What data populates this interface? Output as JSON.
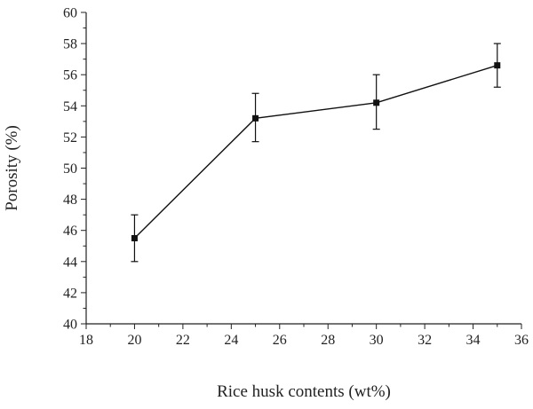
{
  "chart_data": {
    "type": "line",
    "xlabel": "Rice husk contents (wt%)",
    "ylabel": "Porosity (%)",
    "xlim": [
      18,
      36
    ],
    "ylim": [
      40,
      60
    ],
    "xticks": [
      18,
      20,
      22,
      24,
      26,
      28,
      30,
      32,
      34,
      36
    ],
    "yticks": [
      40,
      42,
      44,
      46,
      48,
      50,
      52,
      54,
      56,
      58,
      60
    ],
    "grid": false,
    "legend": "none",
    "marker": "square",
    "series": [
      {
        "x": [
          20,
          25,
          30,
          35
        ],
        "y": [
          45.5,
          53.2,
          54.2,
          56.6
        ],
        "yerr_low": [
          44.0,
          51.7,
          52.5,
          55.2
        ],
        "yerr_high": [
          47.0,
          54.8,
          56.0,
          58.0
        ]
      }
    ]
  }
}
